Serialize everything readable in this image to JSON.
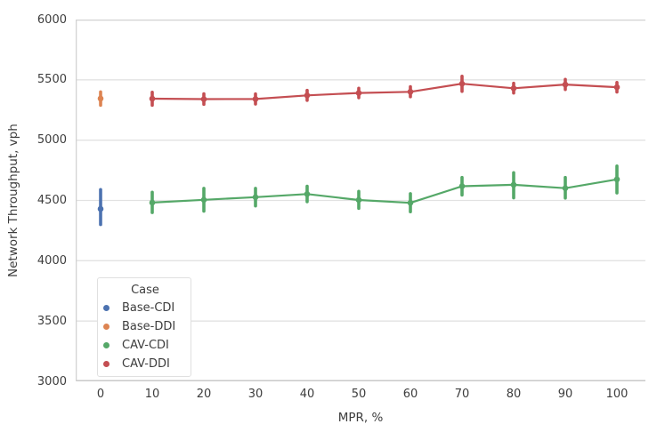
{
  "colors": {
    "background": "#ffffff",
    "grid": "#e2e2e2",
    "spine": "#d2d2d2",
    "text": "#3d3d3d"
  },
  "chart_data": {
    "type": "line",
    "title": "",
    "xlabel": "MPR, %",
    "ylabel": "Network Throughput, vph",
    "ylim": [
      3000,
      6000
    ],
    "xlim": [
      -5,
      105
    ],
    "x_ticks": [
      0,
      10,
      20,
      30,
      40,
      50,
      60,
      70,
      80,
      90,
      100
    ],
    "y_ticks": [
      3000,
      3500,
      4000,
      4500,
      5000,
      5500,
      6000
    ],
    "grid": "horizontal-only",
    "legend": {
      "title": "Case",
      "position": "lower-left"
    },
    "series": [
      {
        "name": "Base-CDI",
        "color": "#4C72B0",
        "line": false,
        "x": [
          0
        ],
        "y": [
          4430
        ],
        "err_lo": [
          4300
        ],
        "err_hi": [
          4590
        ]
      },
      {
        "name": "Base-DDI",
        "color": "#DD8452",
        "line": false,
        "x": [
          0
        ],
        "y": [
          5345
        ],
        "err_lo": [
          5290
        ],
        "err_hi": [
          5400
        ]
      },
      {
        "name": "CAV-CDI",
        "color": "#55A868",
        "line": true,
        "x": [
          10,
          20,
          30,
          40,
          50,
          60,
          70,
          80,
          90,
          100
        ],
        "y": [
          4482,
          4505,
          4527,
          4553,
          4504,
          4480,
          4618,
          4630,
          4602,
          4675
        ],
        "err_lo": [
          4400,
          4412,
          4455,
          4490,
          4435,
          4406,
          4545,
          4522,
          4520,
          4563
        ],
        "err_hi": [
          4568,
          4600,
          4600,
          4618,
          4575,
          4556,
          4690,
          4730,
          4690,
          4785
        ]
      },
      {
        "name": "CAV-DDI",
        "color": "#C44E52",
        "line": true,
        "x": [
          10,
          20,
          30,
          40,
          50,
          60,
          70,
          80,
          90,
          100
        ],
        "y": [
          5344,
          5340,
          5341,
          5371,
          5391,
          5401,
          5468,
          5430,
          5461,
          5439
        ],
        "err_lo": [
          5290,
          5297,
          5300,
          5330,
          5352,
          5360,
          5405,
          5391,
          5420,
          5399
        ],
        "err_hi": [
          5397,
          5384,
          5383,
          5413,
          5430,
          5443,
          5530,
          5472,
          5504,
          5478
        ]
      }
    ]
  }
}
